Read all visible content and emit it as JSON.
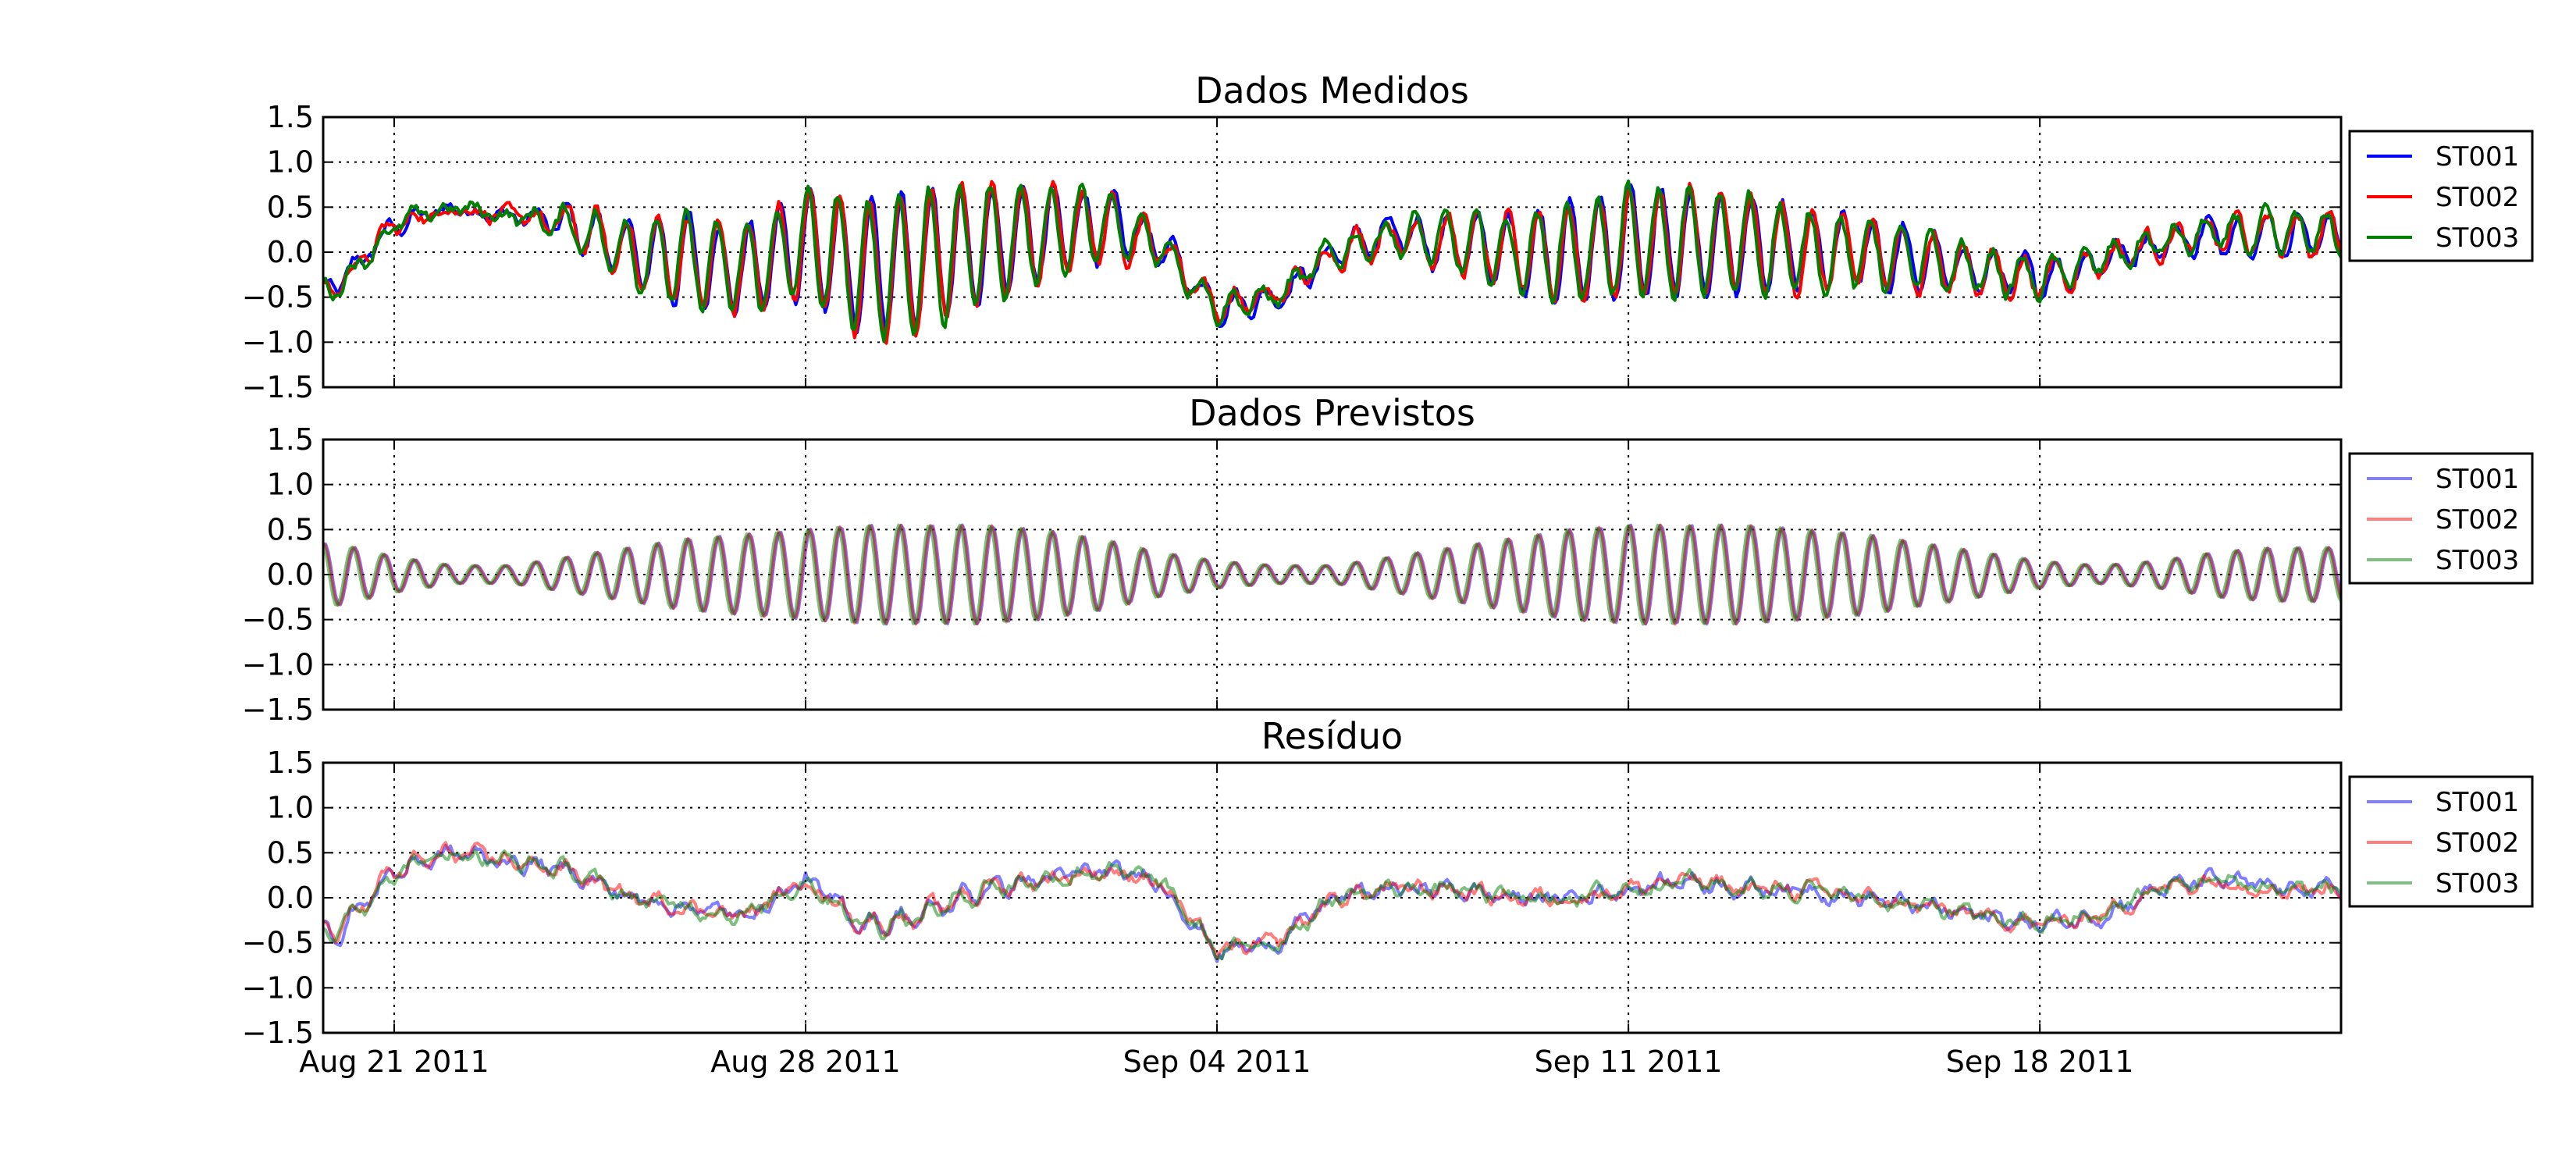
{
  "figure": {
    "x_ticks": [
      "Aug 21 2011",
      "Aug 28 2011",
      "Sep 04 2011",
      "Sep 11 2011",
      "Sep 18 2011"
    ],
    "y_ticks": [
      "1.5",
      "1.0",
      "0.5",
      "0.0",
      "−0.5",
      "−1.0",
      "−1.5"
    ]
  },
  "chart_data": [
    {
      "type": "line",
      "title": "Dados Medidos",
      "xlabel": "",
      "ylabel": "",
      "xlim": [
        "2011-08-19T19:00",
        "2011-09-23T03:00"
      ],
      "ylim": [
        -1.5,
        1.5
      ],
      "grid": true,
      "legend_position": "outside right, top",
      "line_alpha": 1.0,
      "series": [
        {
          "name": "ST001",
          "color": "#0000ff"
        },
        {
          "name": "ST002",
          "color": "#ff0000"
        },
        {
          "name": "ST003",
          "color": "#008000"
        }
      ],
      "x_daily": [
        "2011-08-20",
        "2011-08-21",
        "2011-08-22",
        "2011-08-23",
        "2011-08-24",
        "2011-08-25",
        "2011-08-26",
        "2011-08-27",
        "2011-08-28",
        "2011-08-29",
        "2011-08-30",
        "2011-08-31",
        "2011-09-01",
        "2011-09-02",
        "2011-09-03",
        "2011-09-04",
        "2011-09-05",
        "2011-09-06",
        "2011-09-07",
        "2011-09-08",
        "2011-09-09",
        "2011-09-10",
        "2011-09-11",
        "2011-09-12",
        "2011-09-13",
        "2011-09-14",
        "2011-09-15",
        "2011-09-16",
        "2011-09-17",
        "2011-09-18",
        "2011-09-19",
        "2011-09-20",
        "2011-09-21",
        "2011-09-22"
      ],
      "baseline_daily_mean_approx": [
        -0.4,
        0.3,
        0.5,
        0.4,
        0.3,
        0.0,
        -0.1,
        -0.2,
        0.1,
        -0.2,
        -0.1,
        0.1,
        0.2,
        0.3,
        0.1,
        -0.6,
        -0.5,
        0.0,
        0.2,
        0.1,
        0.0,
        0.0,
        0.1,
        0.1,
        0.1,
        0.0,
        0.0,
        -0.1,
        -0.2,
        -0.3,
        -0.1,
        0.1,
        0.2,
        0.2
      ],
      "oscillation_amplitude_approx": [
        0.1,
        0.1,
        0.05,
        0.05,
        0.2,
        0.4,
        0.5,
        0.5,
        0.6,
        0.75,
        0.8,
        0.65,
        0.55,
        0.4,
        0.2,
        0.15,
        0.1,
        0.15,
        0.2,
        0.3,
        0.4,
        0.55,
        0.6,
        0.6,
        0.55,
        0.45,
        0.4,
        0.35,
        0.25,
        0.2,
        0.15,
        0.15,
        0.2,
        0.25
      ]
    },
    {
      "type": "line",
      "title": "Dados Previstos",
      "xlabel": "",
      "ylabel": "",
      "xlim": [
        "2011-08-19T19:00",
        "2011-09-23T03:00"
      ],
      "ylim": [
        -1.5,
        1.5
      ],
      "grid": true,
      "legend_position": "outside right, top",
      "line_alpha": 0.5,
      "series": [
        {
          "name": "ST001",
          "color": "#0000ff"
        },
        {
          "name": "ST002",
          "color": "#ff0000"
        },
        {
          "name": "ST003",
          "color": "#008000"
        }
      ],
      "x_daily": [
        "2011-08-20",
        "2011-08-21",
        "2011-08-22",
        "2011-08-23",
        "2011-08-24",
        "2011-08-25",
        "2011-08-26",
        "2011-08-27",
        "2011-08-28",
        "2011-08-29",
        "2011-08-30",
        "2011-08-31",
        "2011-09-01",
        "2011-09-02",
        "2011-09-03",
        "2011-09-04",
        "2011-09-05",
        "2011-09-06",
        "2011-09-07",
        "2011-09-08",
        "2011-09-09",
        "2011-09-10",
        "2011-09-11",
        "2011-09-12",
        "2011-09-13",
        "2011-09-14",
        "2011-09-15",
        "2011-09-16",
        "2011-09-17",
        "2011-09-18",
        "2011-09-19",
        "2011-09-20",
        "2011-09-21",
        "2011-09-22"
      ],
      "baseline_daily_mean_approx": [
        0.0,
        0.0,
        0.0,
        0.0,
        0.0,
        0.0,
        0.0,
        0.0,
        0.0,
        0.0,
        0.0,
        0.0,
        0.0,
        0.0,
        0.0,
        0.0,
        0.0,
        0.0,
        0.0,
        0.0,
        0.0,
        0.0,
        0.0,
        0.0,
        0.0,
        0.0,
        0.0,
        0.0,
        0.0,
        0.0,
        0.0,
        0.0,
        0.0,
        0.0
      ],
      "oscillation_amplitude_approx": [
        0.35,
        0.2,
        0.1,
        0.1,
        0.2,
        0.3,
        0.4,
        0.45,
        0.5,
        0.55,
        0.55,
        0.55,
        0.5,
        0.4,
        0.25,
        0.15,
        0.1,
        0.1,
        0.2,
        0.3,
        0.4,
        0.5,
        0.55,
        0.55,
        0.55,
        0.5,
        0.45,
        0.35,
        0.25,
        0.15,
        0.1,
        0.15,
        0.25,
        0.3
      ]
    },
    {
      "type": "line",
      "title": "Resíduo",
      "xlabel": "",
      "ylabel": "",
      "xlim": [
        "2011-08-19T19:00",
        "2011-09-23T03:00"
      ],
      "ylim": [
        -1.5,
        1.5
      ],
      "grid": true,
      "legend_position": "outside right, top",
      "line_alpha": 0.5,
      "series": [
        {
          "name": "ST001",
          "color": "#0000ff"
        },
        {
          "name": "ST002",
          "color": "#ff0000"
        },
        {
          "name": "ST003",
          "color": "#008000"
        }
      ],
      "x_daily": [
        "2011-08-20",
        "2011-08-21",
        "2011-08-22",
        "2011-08-23",
        "2011-08-24",
        "2011-08-25",
        "2011-08-26",
        "2011-08-27",
        "2011-08-28",
        "2011-08-29",
        "2011-08-30",
        "2011-08-31",
        "2011-09-01",
        "2011-09-02",
        "2011-09-03",
        "2011-09-04",
        "2011-09-05",
        "2011-09-06",
        "2011-09-07",
        "2011-09-08",
        "2011-09-09",
        "2011-09-10",
        "2011-09-11",
        "2011-09-12",
        "2011-09-13",
        "2011-09-14",
        "2011-09-15",
        "2011-09-16",
        "2011-09-17",
        "2011-09-18",
        "2011-09-19",
        "2011-09-20",
        "2011-09-21",
        "2011-09-22"
      ],
      "baseline_daily_mean_approx": [
        -0.4,
        0.3,
        0.5,
        0.4,
        0.3,
        0.0,
        -0.1,
        -0.2,
        0.2,
        -0.3,
        -0.2,
        0.1,
        0.2,
        0.3,
        0.2,
        -0.6,
        -0.5,
        0.0,
        0.1,
        0.1,
        0.0,
        0.0,
        0.1,
        0.2,
        0.1,
        0.1,
        0.0,
        -0.1,
        -0.2,
        -0.3,
        -0.2,
        0.1,
        0.2,
        0.1
      ],
      "oscillation_amplitude_approx": [
        0.1,
        0.1,
        0.05,
        0.05,
        0.05,
        0.05,
        0.05,
        0.05,
        0.05,
        0.1,
        0.1,
        0.1,
        0.05,
        0.05,
        0.05,
        0.05,
        0.05,
        0.05,
        0.05,
        0.05,
        0.05,
        0.05,
        0.05,
        0.05,
        0.05,
        0.05,
        0.05,
        0.05,
        0.05,
        0.05,
        0.05,
        0.05,
        0.05,
        0.05
      ]
    }
  ]
}
